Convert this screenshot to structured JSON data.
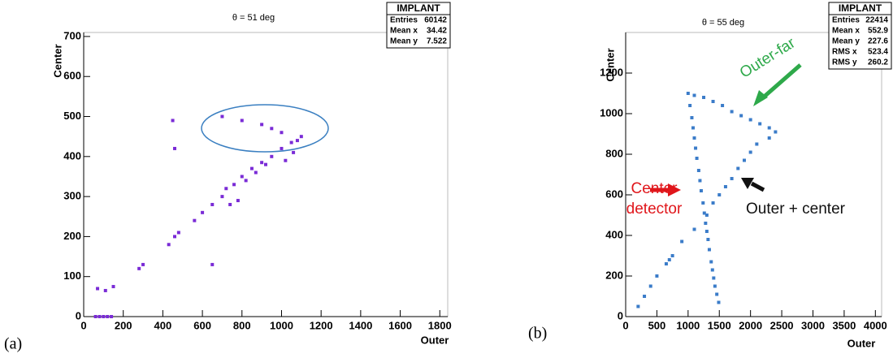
{
  "chart_data": [
    {
      "type": "scatter",
      "label": "(a)",
      "title": "θ = 51 deg",
      "x_label": "Outer",
      "y_label": "Center",
      "color": "#7a2bd6",
      "xlim": [
        0,
        1840
      ],
      "ylim": [
        0,
        710
      ],
      "xticks": [
        0,
        200,
        400,
        600,
        800,
        1000,
        1200,
        1400,
        1600,
        1800
      ],
      "yticks": [
        0,
        100,
        200,
        300,
        400,
        500,
        600,
        700
      ],
      "stats": {
        "title": "IMPLANT",
        "rows": [
          [
            "Entries",
            "60142"
          ],
          [
            "Mean x",
            "34.42"
          ],
          [
            "Mean y",
            "7.522"
          ]
        ]
      },
      "x": [
        60,
        80,
        100,
        120,
        140,
        70,
        110,
        150,
        280,
        300,
        430,
        460,
        480,
        560,
        600,
        650,
        700,
        720,
        760,
        800,
        850,
        900,
        950,
        1000,
        1050,
        1100,
        460,
        450,
        700,
        800,
        900,
        950,
        1000,
        650,
        740,
        780,
        820,
        870,
        920,
        1020,
        1060,
        1080
      ],
      "values": [
        0,
        0,
        0,
        0,
        0,
        70,
        65,
        75,
        120,
        130,
        180,
        200,
        210,
        240,
        260,
        280,
        300,
        320,
        330,
        350,
        370,
        385,
        400,
        420,
        435,
        450,
        420,
        490,
        500,
        490,
        480,
        470,
        460,
        130,
        280,
        290,
        340,
        360,
        380,
        390,
        410,
        440
      ]
    },
    {
      "type": "scatter",
      "label": "(b)",
      "title": "θ = 55 deg",
      "x_label": "Outer",
      "y_label": "Center",
      "color": "#3b7cc9",
      "xlim": [
        0,
        4100
      ],
      "ylim": [
        0,
        1400
      ],
      "xticks": [
        0,
        500,
        1000,
        1500,
        2000,
        2500,
        3000,
        3500,
        4000
      ],
      "yticks": [
        0,
        200,
        400,
        600,
        800,
        1000,
        1200
      ],
      "stats": {
        "title": "IMPLANT",
        "rows": [
          [
            "Entries",
            "22414"
          ],
          [
            "Mean x",
            "552.9"
          ],
          [
            "Mean y",
            "227.6"
          ],
          [
            "RMS x",
            "523.4"
          ],
          [
            "RMS y",
            "260.2"
          ]
        ]
      },
      "annotations": [
        "Outer-far",
        "Center",
        "detector",
        "Outer + center"
      ],
      "x": [
        1000,
        1030,
        1060,
        1080,
        1100,
        1120,
        1140,
        1170,
        1190,
        1210,
        1240,
        1260,
        1280,
        1300,
        1320,
        1340,
        1370,
        1390,
        1410,
        1430,
        1460,
        1490,
        200,
        300,
        400,
        500,
        650,
        700,
        750,
        900,
        1100,
        1300,
        1400,
        1500,
        1600,
        1700,
        1800,
        1900,
        2000,
        1100,
        1250,
        1400,
        1550,
        1700,
        1850,
        2000,
        2150,
        2300,
        2400,
        2100,
        2300
      ],
      "values": [
        1100,
        1040,
        980,
        930,
        880,
        830,
        780,
        720,
        670,
        620,
        560,
        510,
        460,
        420,
        380,
        330,
        270,
        230,
        190,
        150,
        110,
        70,
        50,
        100,
        150,
        200,
        260,
        280,
        300,
        370,
        430,
        500,
        560,
        600,
        640,
        680,
        730,
        770,
        810,
        1090,
        1080,
        1060,
        1040,
        1010,
        990,
        970,
        950,
        930,
        910,
        850,
        880
      ]
    }
  ]
}
